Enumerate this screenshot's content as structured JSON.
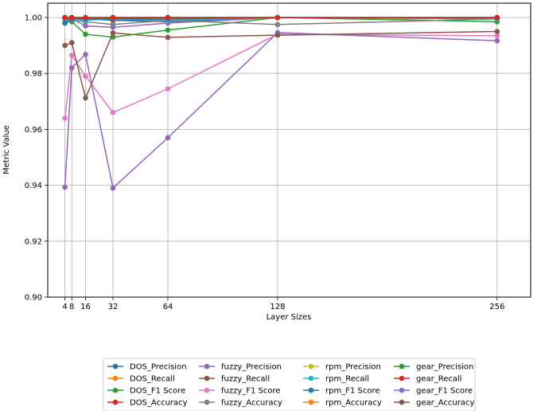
{
  "chart_data": {
    "type": "line",
    "xlabel": "Layer Sizes",
    "ylabel": "Metric Value",
    "x": [
      4,
      8,
      16,
      32,
      64,
      128,
      256
    ],
    "x_ticks": [
      "4",
      "8",
      "16",
      "32",
      "64",
      "128",
      "256"
    ],
    "ylim": [
      0.9,
      1.0
    ],
    "y_ticks": [
      "0.90",
      "0.92",
      "0.94",
      "0.96",
      "0.98",
      "1.00"
    ],
    "grid": true,
    "legend_placement": "bottom-center",
    "series": [
      {
        "name": "DOS_Precision",
        "color": "#1f77b4",
        "values": [
          0.999,
          0.9995,
          0.9995,
          0.999,
          0.9985,
          1.0,
          0.9995
        ]
      },
      {
        "name": "DOS_Recall",
        "color": "#ff7f0e",
        "values": [
          0.9995,
          0.9998,
          0.9998,
          0.9998,
          0.9995,
          1.0,
          0.9998
        ]
      },
      {
        "name": "DOS_F1 Score",
        "color": "#2ca02c",
        "values": [
          0.9998,
          0.9985,
          0.994,
          0.993,
          0.9955,
          1.0,
          0.9985
        ]
      },
      {
        "name": "DOS_Accuracy",
        "color": "#d62728",
        "values": [
          0.9998,
          1.0,
          1.0,
          1.0,
          1.0,
          1.0,
          1.0
        ]
      },
      {
        "name": "fuzzy_Precision",
        "color": "#9467bd",
        "values": [
          0.9995,
          0.9995,
          0.997,
          0.9965,
          0.998,
          1.0,
          0.9998
        ]
      },
      {
        "name": "fuzzy_Recall",
        "color": "#8c564b",
        "values": [
          0.9998,
          0.9998,
          0.9998,
          0.999,
          0.999,
          1.0,
          0.9998
        ]
      },
      {
        "name": "fuzzy_F1 Score",
        "color": "#e377c2",
        "values": [
          0.964,
          0.9865,
          0.979,
          0.966,
          0.9745,
          0.994,
          0.9935
        ]
      },
      {
        "name": "fuzzy_Accuracy",
        "color": "#7f7f7f",
        "values": [
          0.998,
          0.999,
          0.9985,
          0.9975,
          0.999,
          0.9975,
          0.9995
        ]
      },
      {
        "name": "rpm_Precision",
        "color": "#bcbd22",
        "values": [
          1.0,
          1.0,
          1.0,
          1.0,
          1.0,
          1.0,
          1.0
        ]
      },
      {
        "name": "rpm_Recall",
        "color": "#17becf",
        "values": [
          0.9985,
          0.9995,
          0.999,
          0.9995,
          0.999,
          1.0,
          0.9995
        ]
      },
      {
        "name": "rpm_F1 Score",
        "color": "#1f77b4",
        "values": [
          0.998,
          0.9995,
          0.9995,
          0.9995,
          0.9995,
          1.0,
          0.9998
        ]
      },
      {
        "name": "rpm_Accuracy",
        "color": "#ff7f0e",
        "values": [
          0.9998,
          1.0,
          1.0,
          1.0,
          1.0,
          1.0,
          1.0
        ]
      },
      {
        "name": "gear_Precision",
        "color": "#2ca02c",
        "values": [
          1.0,
          1.0,
          1.0,
          1.0,
          1.0,
          1.0,
          1.0
        ]
      },
      {
        "name": "gear_Recall",
        "color": "#d62728",
        "values": [
          1.0,
          1.0,
          1.0,
          1.0,
          1.0,
          1.0,
          1.0
        ]
      },
      {
        "name": "gear_F1 Score",
        "color": "#9467bd",
        "values": [
          0.9393,
          0.982,
          0.9868,
          0.939,
          0.957,
          0.9946,
          0.9917
        ]
      },
      {
        "name": "gear_Accuracy",
        "color": "#8c564b",
        "values": [
          0.99,
          0.991,
          0.9712,
          0.9945,
          0.9929,
          0.9937,
          0.995
        ]
      }
    ]
  }
}
